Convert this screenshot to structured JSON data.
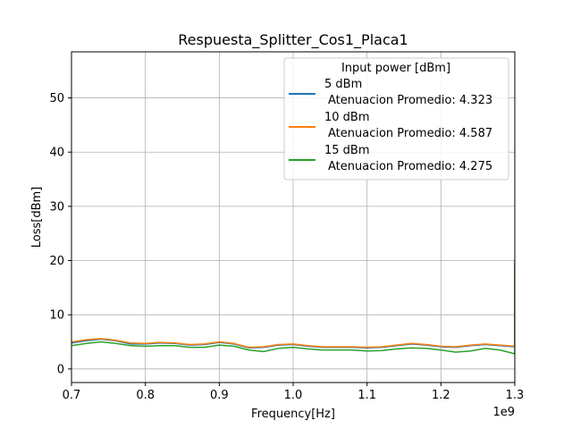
{
  "chart_data": {
    "type": "line",
    "title": "Respuesta_Splitter_Cos1_Placa1",
    "xlabel": "Frequency[Hz]",
    "ylabel": "Loss[dBm]",
    "x_offset_label": "1e9",
    "xlim": [
      0.7,
      1.3
    ],
    "ylim": [
      -2.5,
      58.5
    ],
    "x_ticks": [
      "0.7",
      "0.8",
      "0.9",
      "1.0",
      "1.1",
      "1.2",
      "1.3"
    ],
    "y_ticks": [
      "0",
      "10",
      "20",
      "30",
      "40",
      "50"
    ],
    "grid": true,
    "legend": {
      "title": "Input power [dBm]",
      "placement": "upper right"
    },
    "x": [
      0.7,
      0.72,
      0.74,
      0.76,
      0.78,
      0.8,
      0.82,
      0.84,
      0.86,
      0.88,
      0.9,
      0.92,
      0.94,
      0.96,
      0.98,
      1.0,
      1.02,
      1.04,
      1.06,
      1.08,
      1.1,
      1.12,
      1.14,
      1.16,
      1.18,
      1.2,
      1.22,
      1.24,
      1.26,
      1.28,
      1.3
    ],
    "series": [
      {
        "name": "5 dBm",
        "label_line2": "Atenuacion Promedio: 4.323",
        "color": "#1f77b4",
        "values": [
          4.8,
          5.2,
          5.5,
          5.2,
          4.6,
          4.6,
          4.8,
          4.7,
          4.4,
          4.5,
          4.9,
          4.6,
          3.9,
          4.0,
          4.4,
          4.5,
          4.2,
          4.0,
          4.0,
          4.0,
          3.9,
          4.0,
          4.3,
          4.6,
          4.4,
          4.1,
          4.0,
          4.3,
          4.5,
          4.3,
          4.1
        ],
        "end_spike": 20
      },
      {
        "name": "10 dBm",
        "label_line2": "Atenuacion Promedio: 4.587",
        "color": "#ff7f0e",
        "values": [
          5.0,
          5.4,
          5.6,
          5.3,
          4.8,
          4.7,
          4.9,
          4.8,
          4.5,
          4.6,
          5.0,
          4.7,
          4.0,
          4.1,
          4.5,
          4.6,
          4.3,
          4.1,
          4.1,
          4.1,
          4.0,
          4.1,
          4.4,
          4.7,
          4.5,
          4.2,
          4.1,
          4.4,
          4.6,
          4.4,
          4.2
        ],
        "end_spike": 20
      },
      {
        "name": "15 dBm",
        "label_line2": "Atenuacion Promedio: 4.275",
        "color": "#2ca02c",
        "values": [
          4.3,
          4.7,
          5.0,
          4.7,
          4.3,
          4.2,
          4.3,
          4.3,
          4.0,
          4.0,
          4.4,
          4.2,
          3.5,
          3.2,
          3.8,
          4.0,
          3.7,
          3.5,
          3.5,
          3.5,
          3.3,
          3.4,
          3.7,
          3.9,
          3.8,
          3.5,
          3.1,
          3.3,
          3.8,
          3.5,
          2.8
        ],
        "end_spike": 19
      }
    ]
  }
}
